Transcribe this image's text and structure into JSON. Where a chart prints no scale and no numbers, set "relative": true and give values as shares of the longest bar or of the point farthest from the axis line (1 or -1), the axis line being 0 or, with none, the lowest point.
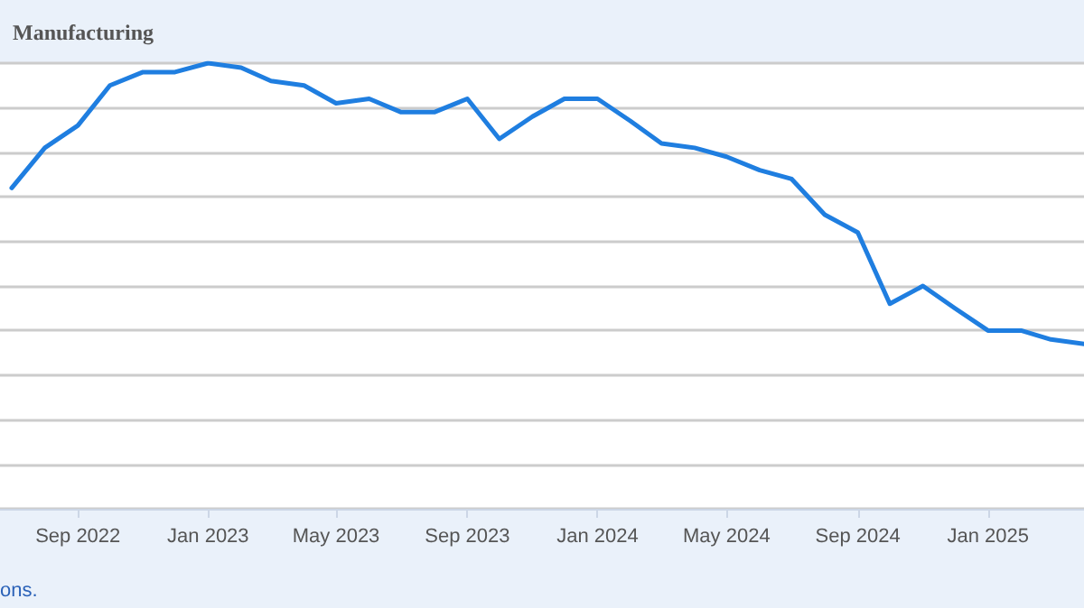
{
  "chart_data": {
    "type": "line",
    "title": "Manufacturing",
    "relative": true,
    "grid": "y",
    "marker": "none",
    "line_style": "solid",
    "x": [
      "2022-07",
      "2022-08",
      "2022-09",
      "2022-10",
      "2022-11",
      "2022-12",
      "2023-01",
      "2023-02",
      "2023-03",
      "2023-04",
      "2023-05",
      "2023-06",
      "2023-07",
      "2023-08",
      "2023-09",
      "2023-10",
      "2023-11",
      "2023-12",
      "2024-01",
      "2024-02",
      "2024-03",
      "2024-04",
      "2024-05",
      "2024-06",
      "2024-07",
      "2024-08",
      "2024-09",
      "2024-10",
      "2024-11",
      "2024-12",
      "2025-01",
      "2025-02",
      "2025-03",
      "2025-04"
    ],
    "series": [
      {
        "color": "#1f7ee0",
        "values": [
          0.72,
          0.81,
          0.86,
          0.95,
          0.98,
          0.98,
          1,
          0.99,
          0.96,
          0.95,
          0.91,
          0.92,
          0.89,
          0.89,
          0.92,
          0.83,
          0.88,
          0.92,
          0.92,
          0.87,
          0.82,
          0.81,
          0.79,
          0.76,
          0.74,
          0.66,
          0.62,
          0.46,
          0.5,
          0.45,
          0.4,
          0.4,
          0.38,
          0.37
        ]
      }
    ],
    "xlim": [
      "2022-06-20",
      "2025-04-01"
    ],
    "xticks": [
      {
        "value": "2022-09-01",
        "label": "Sep 2022"
      },
      {
        "value": "2023-01-01",
        "label": "Jan 2023"
      },
      {
        "value": "2023-05-01",
        "label": "May 2023"
      },
      {
        "value": "2023-09-01",
        "label": "Sep 2023"
      },
      {
        "value": "2024-01-01",
        "label": "Jan 2024"
      },
      {
        "value": "2024-05-01",
        "label": "May 2024"
      },
      {
        "value": "2024-09-01",
        "label": "Sep 2024"
      },
      {
        "value": "2025-01-01",
        "label": "Jan 2025"
      }
    ],
    "annotations": [
      "ons."
    ]
  }
}
